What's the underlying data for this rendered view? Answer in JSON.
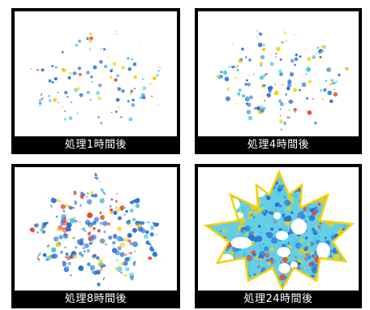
{
  "panels": [
    {
      "caption": "処理1時間後",
      "density": 0.25
    },
    {
      "caption": "処理4時間後",
      "density": 0.45
    },
    {
      "caption": "処理8時間後",
      "density": 0.75
    },
    {
      "caption": "処理24時間後",
      "density": 1.0
    }
  ],
  "colors": {
    "frame": "#000000",
    "leaf_low": "#2a6fd6",
    "leaf_mid": "#49c6e5",
    "leaf_high": "#f5d200",
    "leaf_peak": "#e8452b"
  }
}
